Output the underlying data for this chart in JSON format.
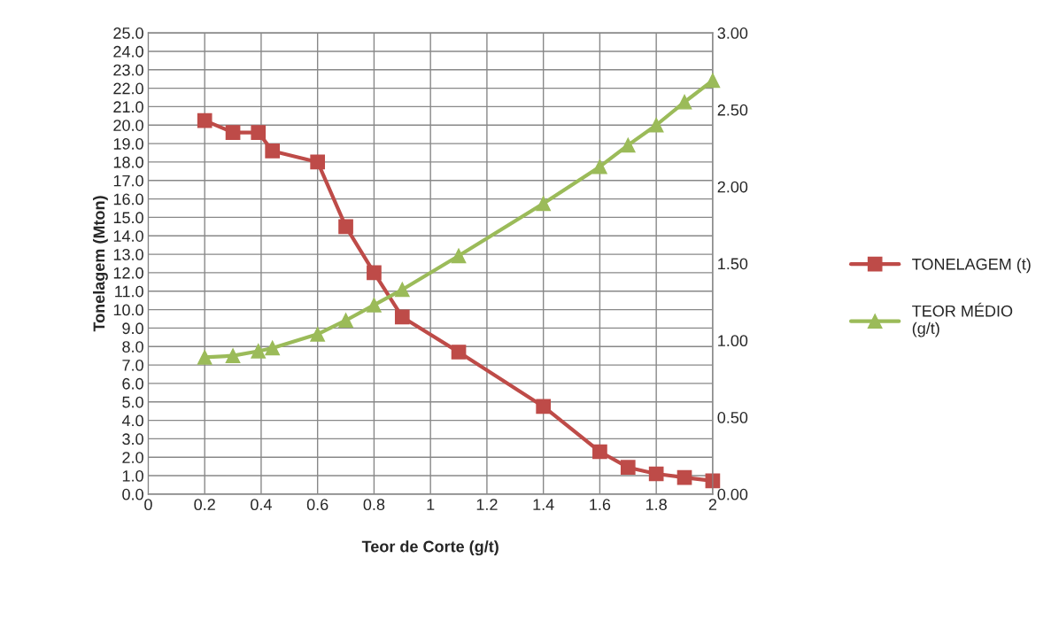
{
  "chart_data": {
    "type": "line",
    "xlabel": "Teor de Corte (g/t)",
    "ylabel": "Tonelagem (Mton)",
    "x": [
      0.2,
      0.3,
      0.39,
      0.44,
      0.6,
      0.7,
      0.8,
      0.9,
      1.1,
      1.4,
      1.6,
      1.7,
      1.8,
      1.9,
      2.0
    ],
    "series": [
      {
        "name": "TONELAGEM (t)",
        "color": "#be4b48",
        "marker": "square",
        "values": [
          20.25,
          19.6,
          19.6,
          18.6,
          18.0,
          14.5,
          12.0,
          9.6,
          7.7,
          4.75,
          2.3,
          1.45,
          1.1,
          0.9,
          0.72
        ]
      },
      {
        "name": "TEOR MÉDIO (g/t)",
        "color": "#9bbb59",
        "marker": "triangle",
        "axis": "y2",
        "values": [
          0.89,
          0.9,
          0.93,
          0.95,
          1.04,
          1.13,
          1.23,
          1.33,
          1.55,
          1.89,
          2.13,
          2.27,
          2.4,
          2.55,
          2.69
        ]
      }
    ],
    "xlim": [
      0,
      2
    ],
    "xticks": [
      0,
      0.2,
      0.4,
      0.6,
      0.8,
      1,
      1.2,
      1.4,
      1.6,
      1.8,
      2
    ],
    "ylim": [
      0,
      25
    ],
    "yticks": [
      {
        "value": 0,
        "label": "0.0"
      },
      {
        "value": 1,
        "label": "1.0"
      },
      {
        "value": 2,
        "label": "2.0"
      },
      {
        "value": 3,
        "label": "3.0"
      },
      {
        "value": 4,
        "label": "4.0"
      },
      {
        "value": 5,
        "label": "5.0"
      },
      {
        "value": 6,
        "label": "6.0"
      },
      {
        "value": 7,
        "label": "7.0"
      },
      {
        "value": 8,
        "label": "8.0"
      },
      {
        "value": 9,
        "label": "9.0"
      },
      {
        "value": 10,
        "label": "10.0"
      },
      {
        "value": 11,
        "label": "11.0"
      },
      {
        "value": 12,
        "label": "12.0"
      },
      {
        "value": 13,
        "label": "13.0"
      },
      {
        "value": 14,
        "label": "14.0"
      },
      {
        "value": 15,
        "label": "15.0"
      },
      {
        "value": 16,
        "label": "16.0"
      },
      {
        "value": 17,
        "label": "17.0"
      },
      {
        "value": 18,
        "label": "18.0"
      },
      {
        "value": 19,
        "label": "19.0"
      },
      {
        "value": 20,
        "label": "20.0"
      },
      {
        "value": 21,
        "label": "21.0"
      },
      {
        "value": 22,
        "label": "22.0"
      },
      {
        "value": 23,
        "label": "23.0"
      },
      {
        "value": 24,
        "label": "24.0"
      },
      {
        "value": 25,
        "label": "25.0"
      }
    ],
    "y2lim": [
      0,
      3
    ],
    "y2ticks": [
      {
        "value": 0,
        "label": "0.00"
      },
      {
        "value": 0.5,
        "label": "0.50"
      },
      {
        "value": 1,
        "label": "1.00"
      },
      {
        "value": 1.5,
        "label": "1.50"
      },
      {
        "value": 2,
        "label": "2.00"
      },
      {
        "value": 2.5,
        "label": "2.50"
      },
      {
        "value": 3,
        "label": "3.00"
      }
    ],
    "grid": true,
    "legend": "right",
    "line_style": "solid"
  }
}
